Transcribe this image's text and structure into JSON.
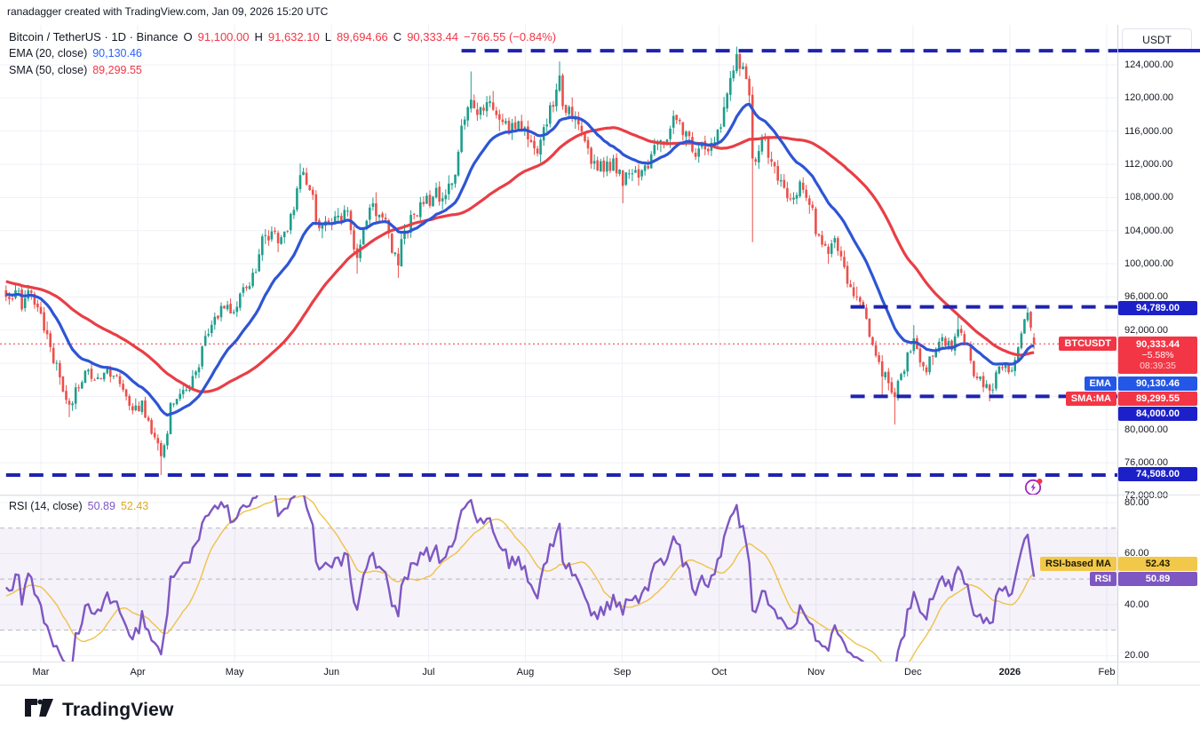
{
  "watermark": "ranadagger created with TradingView.com, Jan 09, 2026 15:20 UTC",
  "header": {
    "symbol_title": "Bitcoin / TetherUS · 1D · Binance",
    "ohlc": {
      "o_label": "O",
      "o": "91,100.00",
      "h_label": "H",
      "h": "91,632.10",
      "l_label": "L",
      "l": "89,694.66",
      "c_label": "C",
      "c": "90,333.44",
      "change": "−766.55 (−0.84%)"
    },
    "ema_label": "EMA (20, close)",
    "ema_value": "90,130.46",
    "sma_label": "SMA (50, close)",
    "sma_value": "89,299.55"
  },
  "rsi_pane": {
    "label": "RSI (14, close)",
    "rsi_value": "50.89",
    "ma_value": "52.43"
  },
  "axis": {
    "currency_button": "USDT",
    "price_ticks": [
      {
        "label": "124,000.00",
        "value": 124000
      },
      {
        "label": "120,000.00",
        "value": 120000
      },
      {
        "label": "116,000.00",
        "value": 116000
      },
      {
        "label": "112,000.00",
        "value": 112000
      },
      {
        "label": "108,000.00",
        "value": 108000
      },
      {
        "label": "104,000.00",
        "value": 104000
      },
      {
        "label": "100,000.00",
        "value": 100000
      },
      {
        "label": "96,000.00",
        "value": 96000
      },
      {
        "label": "92,000.00",
        "value": 92000
      },
      {
        "label": "80,000.00",
        "value": 80000
      },
      {
        "label": "76,000.00",
        "value": 76000
      },
      {
        "label": "72,000.00",
        "value": 72000
      }
    ],
    "rsi_ticks": [
      {
        "label": "80.00",
        "value": 80
      },
      {
        "label": "60.00",
        "value": 60
      },
      {
        "label": "40.00",
        "value": 40
      },
      {
        "label": "20.00",
        "value": 20
      }
    ],
    "months": [
      "Mar",
      "Apr",
      "May",
      "Jun",
      "Jul",
      "Aug",
      "Sep",
      "Oct",
      "Nov",
      "Dec",
      "2026",
      "Feb"
    ]
  },
  "price_labels": {
    "symbol_badge": "BTCUSDT",
    "price": "90,333.44",
    "pct": "−5.58%",
    "countdown": "08:39:35",
    "ema_badge": "EMA",
    "ema_value": "90,130.46",
    "sma_badge": "SMA:MA",
    "sma_value": "89,299.55",
    "level1": "94,789.00",
    "level2": "84,000.00",
    "level3": "74,508.00",
    "rsi_ma_badge": "RSI-based MA",
    "rsi_ma_value": "52.43",
    "rsi_badge": "RSI",
    "rsi_value": "50.89"
  },
  "logo_text": "TradingView",
  "colors": {
    "up": "#1e9e8c",
    "down": "#eb504b",
    "ema": "#2e55d4",
    "sma": "#e93e46",
    "level_dash": "#1f23b0",
    "price_dotted": "#f23645",
    "rsi": "#7e57c2",
    "rsi_ma": "#eec24a",
    "grid": "#eef1f7",
    "band_fill": "rgba(126,87,194,0.08)",
    "band_line": "rgba(130,133,145,0.55)"
  },
  "chart_data": {
    "type": "candlestick",
    "symbol": "BTCUSDT",
    "exchange": "Binance",
    "interval": "1D",
    "title": "Bitcoin / TetherUS · 1D · Binance",
    "x_axis": {
      "months": [
        "Mar",
        "Apr",
        "May",
        "Jun",
        "Jul",
        "Aug",
        "Sep",
        "Oct",
        "Nov",
        "Dec",
        "2026",
        "Feb"
      ],
      "start": "2025-02-18",
      "end": "2026-01-09"
    },
    "y_axis": {
      "min": 70500,
      "max": 128800,
      "tick_step": 4000,
      "unit": "USDT"
    },
    "rsi_axis": {
      "ticks": [
        20,
        40,
        60,
        80
      ],
      "band": [
        30,
        70
      ],
      "mid": 50
    },
    "levels": [
      {
        "price": 125700,
        "from_day": 133,
        "label_visible": false
      },
      {
        "price": 94789,
        "from_day": 256,
        "label_visible": true
      },
      {
        "price": 84000,
        "from_day": 256,
        "label_visible": true
      },
      {
        "price": 74508,
        "from_day": -11,
        "label_visible": true
      }
    ],
    "current_price": 90333.44,
    "last_bar": {
      "open": 91100.0,
      "high": 91632.1,
      "low": 89694.66,
      "close": 90333.44,
      "change": -766.55,
      "change_pct": -0.84
    },
    "indicators": {
      "ema20": 90130.46,
      "sma50": 89299.55,
      "rsi14": 50.89,
      "rsi_ma14": 52.43
    },
    "price_path_anchors": [
      [
        -11,
        96000
      ],
      [
        -8,
        96800
      ],
      [
        -6,
        94500
      ],
      [
        -3,
        96500
      ],
      [
        0,
        94000
      ],
      [
        2,
        91500
      ],
      [
        4,
        88000
      ],
      [
        6,
        86300
      ],
      [
        9,
        83000,
        null,
        81500
      ],
      [
        12,
        85000
      ],
      [
        15,
        87200
      ],
      [
        18,
        86300
      ],
      [
        21,
        87400
      ],
      [
        24,
        86500
      ],
      [
        27,
        84000
      ],
      [
        29,
        82300
      ],
      [
        32,
        83500
      ],
      [
        35,
        79500
      ],
      [
        38,
        76800,
        null,
        74508
      ],
      [
        40,
        79500
      ],
      [
        41,
        83200
      ],
      [
        44,
        84300
      ],
      [
        47,
        84800
      ],
      [
        50,
        87500
      ],
      [
        52,
        91300
      ],
      [
        55,
        93600
      ],
      [
        58,
        94600
      ],
      [
        61,
        94200
      ],
      [
        63,
        96400
      ],
      [
        66,
        97300
      ],
      [
        68,
        99000
      ],
      [
        70,
        103300
      ],
      [
        73,
        103900
      ],
      [
        76,
        103200
      ],
      [
        79,
        106000
      ],
      [
        82,
        110700,
        112100
      ],
      [
        85,
        108900
      ],
      [
        88,
        104300
      ],
      [
        91,
        104900
      ],
      [
        94,
        105800
      ],
      [
        97,
        106400
      ],
      [
        100,
        100700,
        null,
        98800
      ],
      [
        102,
        104300
      ],
      [
        105,
        107300
      ],
      [
        108,
        105600
      ],
      [
        110,
        103700
      ],
      [
        113,
        99800,
        null,
        98300
      ],
      [
        115,
        104000
      ],
      [
        118,
        105900
      ],
      [
        121,
        107200
      ],
      [
        124,
        108100
      ],
      [
        127,
        107900
      ],
      [
        130,
        109700
      ],
      [
        132,
        113500
      ],
      [
        134,
        117400
      ],
      [
        136,
        119800,
        123200
      ],
      [
        139,
        118900
      ],
      [
        142,
        119600
      ],
      [
        145,
        117400
      ],
      [
        148,
        115700
      ],
      [
        151,
        117200
      ],
      [
        154,
        115000
      ],
      [
        157,
        113300
      ],
      [
        160,
        116800
      ],
      [
        163,
        121000
      ],
      [
        164,
        122700,
        124400
      ],
      [
        166,
        118200
      ],
      [
        169,
        117600
      ],
      [
        172,
        114800
      ],
      [
        175,
        112400
      ],
      [
        178,
        111100
      ],
      [
        181,
        112700
      ],
      [
        184,
        109400,
        null,
        107300
      ],
      [
        187,
        110900
      ],
      [
        190,
        111300
      ],
      [
        193,
        113200
      ],
      [
        196,
        114900
      ],
      [
        199,
        116300
      ],
      [
        202,
        117200
      ],
      [
        205,
        115400
      ],
      [
        207,
        112900
      ],
      [
        210,
        113800
      ],
      [
        213,
        114700
      ],
      [
        216,
        118900
      ],
      [
        218,
        122400
      ],
      [
        220,
        125300,
        126200
      ],
      [
        222,
        123800
      ],
      [
        224,
        120300
      ],
      [
        225,
        112700,
        null,
        102600
      ],
      [
        227,
        113600
      ],
      [
        229,
        115200
      ],
      [
        231,
        112300
      ],
      [
        234,
        110100
      ],
      [
        237,
        107800
      ],
      [
        240,
        109900
      ],
      [
        243,
        107100
      ],
      [
        246,
        103400
      ],
      [
        249,
        101200
      ],
      [
        251,
        103100
      ],
      [
        254,
        99600
      ],
      [
        257,
        96100
      ],
      [
        260,
        94800
      ],
      [
        262,
        91200
      ],
      [
        264,
        88900
      ],
      [
        266,
        86400,
        null,
        84200
      ],
      [
        268,
        85600
      ],
      [
        270,
        83900,
        null,
        80600
      ],
      [
        272,
        86700
      ],
      [
        274,
        89300
      ],
      [
        276,
        91000,
        92600
      ],
      [
        278,
        88100
      ],
      [
        280,
        86900
      ],
      [
        282,
        88800
      ],
      [
        284,
        90600
      ],
      [
        286,
        90100
      ],
      [
        288,
        89600
      ],
      [
        290,
        92100,
        93800
      ],
      [
        292,
        90400
      ],
      [
        294,
        88300
      ],
      [
        296,
        86200
      ],
      [
        298,
        85100
      ],
      [
        300,
        84700,
        null,
        83400
      ],
      [
        302,
        86900
      ],
      [
        304,
        87400
      ],
      [
        306,
        86900
      ],
      [
        308,
        88400
      ],
      [
        310,
        91600
      ],
      [
        311,
        93300
      ],
      [
        312,
        94100,
        94789
      ],
      [
        313,
        92300
      ],
      [
        314,
        90333.44
      ]
    ]
  }
}
